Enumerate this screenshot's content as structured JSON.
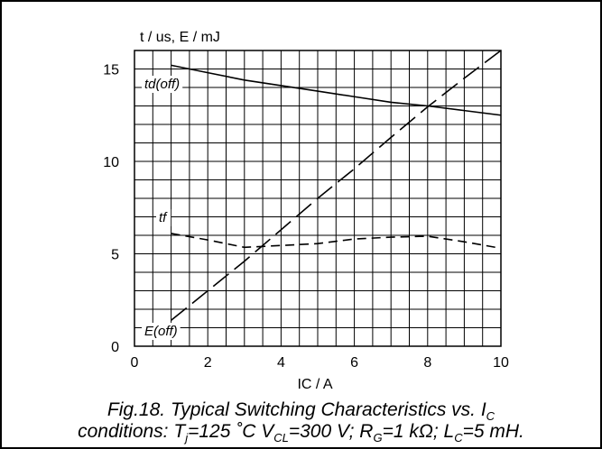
{
  "chart_data": {
    "type": "line",
    "ylabel": "t / us, E / mJ",
    "xlabel": "IC / A",
    "xlim": [
      0,
      10
    ],
    "ylim": [
      0,
      16
    ],
    "xticks": [
      0,
      2,
      4,
      6,
      8,
      10
    ],
    "yticks": [
      0,
      5,
      10,
      15
    ],
    "grid": true,
    "series": [
      {
        "name": "td(off)",
        "style": "solid",
        "x": [
          1,
          2,
          3,
          4,
          5,
          6,
          7,
          8,
          9,
          10
        ],
        "y": [
          15.2,
          14.8,
          14.4,
          14.1,
          13.8,
          13.5,
          13.2,
          13.0,
          12.75,
          12.5
        ]
      },
      {
        "name": "tf",
        "style": "short-dash",
        "x": [
          1,
          2,
          3,
          4,
          5,
          6,
          7,
          8,
          9,
          10
        ],
        "y": [
          6.1,
          5.75,
          5.35,
          5.45,
          5.55,
          5.8,
          5.9,
          5.95,
          5.65,
          5.3
        ]
      },
      {
        "name": "E(off)",
        "style": "long-dash",
        "x": [
          1,
          2,
          3,
          4,
          5,
          6,
          7,
          8,
          9,
          10
        ],
        "y": [
          1.4,
          3.0,
          4.6,
          6.3,
          8.0,
          9.6,
          11.3,
          12.95,
          14.5,
          16.0
        ]
      }
    ]
  },
  "caption": {
    "line1_text": "Fig.18.   Typical Switching Characteristics vs. I",
    "line1_sub": "C",
    "line2_a": "conditions: T",
    "line2_a_sub": "j",
    "line2_b": "=125 ˚C V",
    "line2_b_sub": "CL",
    "line2_c": "=300 V; R",
    "line2_c_sub": "G",
    "line2_d": "=1 kΩ;  L",
    "line2_d_sub": "C",
    "line2_e": "=5 mH."
  }
}
